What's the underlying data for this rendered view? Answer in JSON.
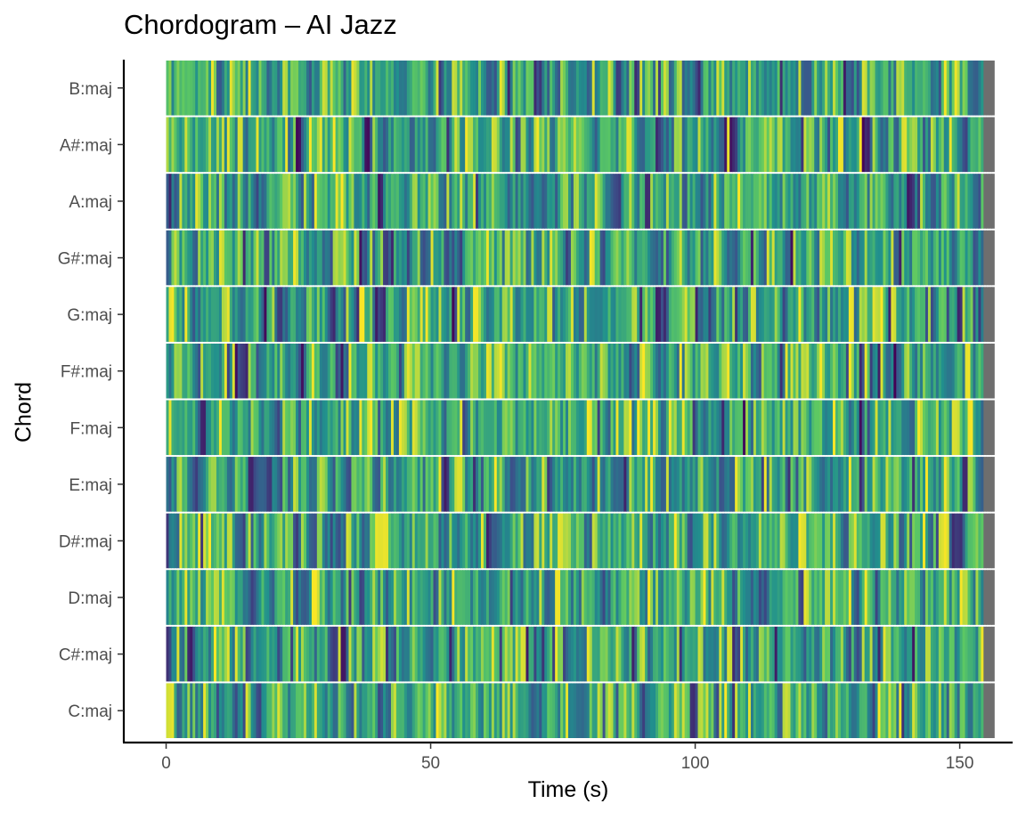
{
  "chart_data": {
    "type": "heatmap",
    "title": "Chordogram – AI Jazz",
    "xlabel": "Time (s)",
    "ylabel": "Chord",
    "xlim": [
      -8,
      160
    ],
    "x_ticks": [
      0,
      50,
      100,
      150
    ],
    "chords": [
      "C:maj",
      "C#:maj",
      "D:maj",
      "D#:maj",
      "E:maj",
      "F:maj",
      "F#:maj",
      "G:maj",
      "G#:maj",
      "A:maj",
      "A#:maj",
      "B:maj"
    ],
    "duration_s": 156.5,
    "frame_step_s": 0.5,
    "colormap": [
      "#440154",
      "#3b528b",
      "#21908d",
      "#5dc863",
      "#fde725"
    ],
    "missing_color": "#6e6e6e",
    "missing_from_s": 154.2,
    "grid": false,
    "legend": "none"
  }
}
